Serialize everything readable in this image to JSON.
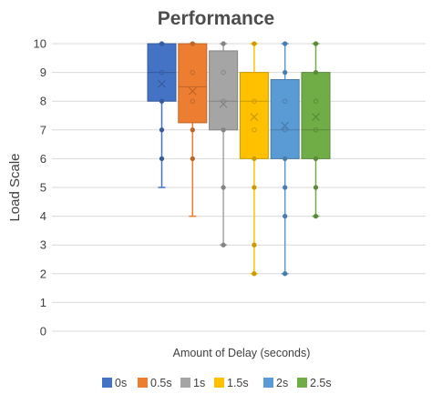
{
  "chart_data": {
    "type": "box",
    "title": "Performance",
    "xlabel": "Amount of Delay (seconds)",
    "ylabel": "Load Scale",
    "ylim": [
      0,
      10
    ],
    "yticks": [
      "0",
      "1",
      "2",
      "3",
      "4",
      "5",
      "6",
      "7",
      "8",
      "9",
      "10"
    ],
    "grid": true,
    "legend_position": "bottom",
    "series": [
      {
        "name": "0s",
        "color": "#4472c4",
        "min": 5,
        "q1": 8,
        "median": 9,
        "q3": 10,
        "max": 10,
        "mean": 8.6,
        "points": [
          10,
          9,
          8,
          7,
          6
        ]
      },
      {
        "name": "0.5s",
        "color": "#ed7d31",
        "min": 4,
        "q1": 7.25,
        "median": 8.5,
        "q3": 10,
        "max": 10,
        "mean": 8.35,
        "points": [
          10,
          9,
          8,
          7,
          6
        ]
      },
      {
        "name": "1s",
        "color": "#a5a5a5",
        "min": 3,
        "q1": 7,
        "median": 8,
        "q3": 9.75,
        "max": 10,
        "mean": 7.9,
        "points": [
          10,
          9,
          8,
          7,
          5,
          3
        ]
      },
      {
        "name": "1.5s",
        "color": "#ffc000",
        "min": 2,
        "q1": 6,
        "median": 8,
        "q3": 9,
        "max": 10,
        "mean": 7.45,
        "points": [
          10,
          8,
          7,
          6,
          5,
          3,
          2
        ]
      },
      {
        "name": "2s",
        "color": "#5b9bd5",
        "min": 2,
        "q1": 6,
        "median": 7,
        "q3": 8.75,
        "max": 10,
        "mean": 7.15,
        "points": [
          10,
          9,
          8,
          7,
          6,
          5,
          4,
          2
        ]
      },
      {
        "name": "2.5s",
        "color": "#70ad47",
        "min": 4,
        "q1": 6,
        "median": 7,
        "q3": 9,
        "max": 10,
        "mean": 7.45,
        "points": [
          10,
          9,
          8,
          7,
          6,
          5,
          4
        ]
      }
    ]
  }
}
